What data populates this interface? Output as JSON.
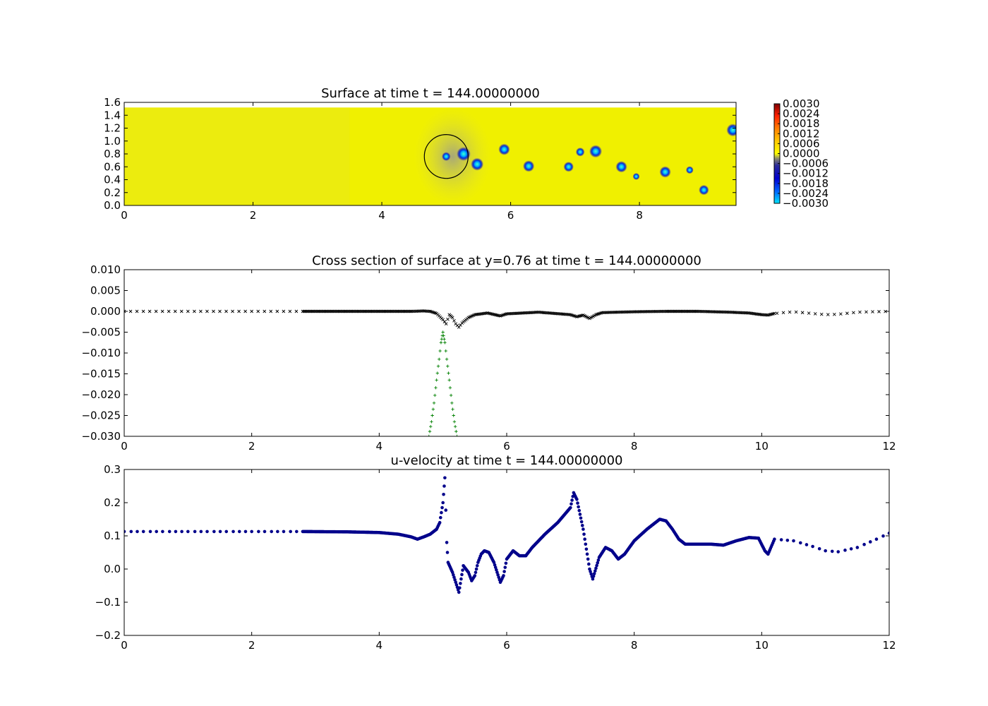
{
  "chart_data": [
    {
      "type": "heatmap",
      "title": "Surface at time t =   144.00000000",
      "xlim": [
        0,
        9.5
      ],
      "ylim": [
        0,
        1.6
      ],
      "field_ylim": [
        0,
        1.52
      ],
      "x_ticks": [
        "0",
        "2",
        "4",
        "6",
        "8"
      ],
      "y_ticks": [
        "0.0",
        "0.2",
        "0.4",
        "0.6",
        "0.8",
        "1.0",
        "1.2",
        "1.4",
        "1.6"
      ],
      "colorbar": {
        "min": -0.003,
        "max": 0.003,
        "colormap": "jet",
        "ticks": [
          "0.0030",
          "0.0024",
          "0.0018",
          "0.0012",
          "0.0006",
          "0.0000",
          "−0.0006",
          "−0.0012",
          "−0.0018",
          "−0.0024",
          "−0.0030"
        ]
      },
      "circle": {
        "cx": 5.0,
        "cy": 0.76,
        "r": 0.34
      },
      "vortices": [
        {
          "x": 5.0,
          "y": 0.76,
          "r": 0.07,
          "value": -0.003
        },
        {
          "x": 5.27,
          "y": 0.8,
          "r": 0.11,
          "value": -0.003
        },
        {
          "x": 5.48,
          "y": 0.64,
          "r": 0.1,
          "value": -0.0028
        },
        {
          "x": 5.9,
          "y": 0.87,
          "r": 0.09,
          "value": -0.0027
        },
        {
          "x": 6.28,
          "y": 0.61,
          "r": 0.09,
          "value": -0.0026
        },
        {
          "x": 6.9,
          "y": 0.6,
          "r": 0.08,
          "value": -0.0024
        },
        {
          "x": 7.08,
          "y": 0.83,
          "r": 0.07,
          "value": -0.0024
        },
        {
          "x": 7.32,
          "y": 0.84,
          "r": 0.1,
          "value": -0.0026
        },
        {
          "x": 7.72,
          "y": 0.6,
          "r": 0.09,
          "value": -0.0025
        },
        {
          "x": 7.95,
          "y": 0.45,
          "r": 0.05,
          "value": -0.0015
        },
        {
          "x": 8.4,
          "y": 0.52,
          "r": 0.09,
          "value": -0.0025
        },
        {
          "x": 8.78,
          "y": 0.55,
          "r": 0.06,
          "value": -0.0018
        },
        {
          "x": 9.0,
          "y": 0.24,
          "r": 0.08,
          "value": -0.0025
        },
        {
          "x": 9.45,
          "y": 1.17,
          "r": 0.1,
          "value": -0.0026
        }
      ],
      "colors": {
        "background_field": "#f0f000",
        "light_band": "#e4e428"
      }
    },
    {
      "type": "scatter",
      "title": "Cross section of surface at y=0.76 at time t =   144.00000000",
      "xlim": [
        0,
        12
      ],
      "ylim": [
        -0.03,
        0.01
      ],
      "x_ticks": [
        "0",
        "2",
        "4",
        "6",
        "8",
        "10",
        "12"
      ],
      "y_ticks": [
        "0.010",
        "0.005",
        "0.000",
        "−0.005",
        "−0.010",
        "−0.015",
        "−0.020",
        "−0.025",
        "−0.030"
      ],
      "series": [
        {
          "marker": "x",
          "color": "#000000",
          "points": [
            [
              0.0,
              0.0
            ],
            [
              0.5,
              0.0
            ],
            [
              1.0,
              0.0
            ],
            [
              1.5,
              0.0
            ],
            [
              2.0,
              0.0
            ],
            [
              2.5,
              0.0
            ],
            [
              2.8,
              0.0
            ],
            [
              3.5,
              0.0
            ],
            [
              4.0,
              0.0
            ],
            [
              4.5,
              0.0
            ],
            [
              4.7,
              0.0001
            ],
            [
              4.8,
              0.0
            ],
            [
              4.9,
              -0.0005
            ],
            [
              5.0,
              -0.002
            ],
            [
              5.05,
              -0.003
            ],
            [
              5.1,
              -0.0008
            ],
            [
              5.15,
              -0.0015
            ],
            [
              5.2,
              -0.003
            ],
            [
              5.25,
              -0.0038
            ],
            [
              5.3,
              -0.0028
            ],
            [
              5.4,
              -0.0015
            ],
            [
              5.5,
              -0.0008
            ],
            [
              5.7,
              -0.0004
            ],
            [
              5.9,
              -0.0011
            ],
            [
              6.0,
              -0.0006
            ],
            [
              6.5,
              -0.0002
            ],
            [
              7.0,
              -0.0008
            ],
            [
              7.1,
              -0.0013
            ],
            [
              7.2,
              -0.0009
            ],
            [
              7.3,
              -0.0017
            ],
            [
              7.4,
              -0.0008
            ],
            [
              7.5,
              -0.0003
            ],
            [
              8.0,
              -0.0001
            ],
            [
              8.5,
              0.0
            ],
            [
              9.0,
              0.0
            ],
            [
              9.5,
              -0.0002
            ],
            [
              9.8,
              -0.0004
            ],
            [
              10.0,
              -0.0008
            ],
            [
              10.1,
              -0.0009
            ],
            [
              10.2,
              -0.0005
            ],
            [
              10.5,
              -0.0001
            ],
            [
              11.0,
              -0.0008
            ],
            [
              11.2,
              -0.0007
            ],
            [
              11.5,
              -0.0002
            ],
            [
              12.0,
              0.0
            ]
          ]
        },
        {
          "marker": "+",
          "color": "#008000",
          "points": [
            [
              4.78,
              -0.03
            ],
            [
              4.82,
              -0.0265
            ],
            [
              4.86,
              -0.022
            ],
            [
              4.9,
              -0.0165
            ],
            [
              4.94,
              -0.0115
            ],
            [
              4.97,
              -0.0075
            ],
            [
              5.0,
              -0.005
            ],
            [
              5.03,
              -0.0075
            ],
            [
              5.06,
              -0.0115
            ],
            [
              5.1,
              -0.0165
            ],
            [
              5.14,
              -0.022
            ],
            [
              5.18,
              -0.0265
            ],
            [
              5.22,
              -0.03
            ]
          ]
        }
      ]
    },
    {
      "type": "scatter",
      "title": "u-velocity at time t =   144.00000000",
      "xlim": [
        0,
        12
      ],
      "ylim": [
        -0.2,
        0.3
      ],
      "x_ticks": [
        "0",
        "2",
        "4",
        "6",
        "8",
        "10",
        "12"
      ],
      "y_ticks": [
        "0.3",
        "0.2",
        "0.1",
        "0.0",
        "−0.1",
        "−0.2"
      ],
      "series": [
        {
          "marker": "o",
          "color": "#00008b",
          "points": [
            [
              0.0,
              0.113
            ],
            [
              1.0,
              0.113
            ],
            [
              2.0,
              0.113
            ],
            [
              2.8,
              0.113
            ],
            [
              3.5,
              0.112
            ],
            [
              4.0,
              0.11
            ],
            [
              4.3,
              0.105
            ],
            [
              4.5,
              0.097
            ],
            [
              4.6,
              0.09
            ],
            [
              4.7,
              0.097
            ],
            [
              4.8,
              0.105
            ],
            [
              4.9,
              0.12
            ],
            [
              4.95,
              0.14
            ],
            [
              5.0,
              0.2
            ],
            [
              5.03,
              0.275
            ],
            [
              5.06,
              0.08
            ],
            [
              5.08,
              0.02
            ],
            [
              5.15,
              -0.01
            ],
            [
              5.2,
              -0.04
            ],
            [
              5.25,
              -0.07
            ],
            [
              5.32,
              0.01
            ],
            [
              5.4,
              -0.01
            ],
            [
              5.45,
              -0.035
            ],
            [
              5.5,
              -0.02
            ],
            [
              5.55,
              0.02
            ],
            [
              5.6,
              0.045
            ],
            [
              5.65,
              0.055
            ],
            [
              5.72,
              0.05
            ],
            [
              5.8,
              0.02
            ],
            [
              5.85,
              -0.01
            ],
            [
              5.9,
              -0.04
            ],
            [
              5.95,
              -0.02
            ],
            [
              6.0,
              0.03
            ],
            [
              6.1,
              0.055
            ],
            [
              6.2,
              0.04
            ],
            [
              6.3,
              0.04
            ],
            [
              6.4,
              0.065
            ],
            [
              6.6,
              0.105
            ],
            [
              6.8,
              0.14
            ],
            [
              7.0,
              0.185
            ],
            [
              7.05,
              0.23
            ],
            [
              7.1,
              0.21
            ],
            [
              7.2,
              0.12
            ],
            [
              7.3,
              0.0
            ],
            [
              7.35,
              -0.03
            ],
            [
              7.45,
              0.035
            ],
            [
              7.55,
              0.065
            ],
            [
              7.65,
              0.055
            ],
            [
              7.75,
              0.03
            ],
            [
              7.85,
              0.045
            ],
            [
              8.0,
              0.085
            ],
            [
              8.2,
              0.12
            ],
            [
              8.4,
              0.15
            ],
            [
              8.5,
              0.145
            ],
            [
              8.6,
              0.12
            ],
            [
              8.7,
              0.09
            ],
            [
              8.8,
              0.075
            ],
            [
              9.0,
              0.075
            ],
            [
              9.2,
              0.075
            ],
            [
              9.4,
              0.072
            ],
            [
              9.6,
              0.085
            ],
            [
              9.8,
              0.095
            ],
            [
              9.95,
              0.093
            ],
            [
              10.05,
              0.055
            ],
            [
              10.1,
              0.045
            ],
            [
              10.2,
              0.09
            ],
            [
              10.5,
              0.085
            ],
            [
              10.8,
              0.068
            ],
            [
              11.0,
              0.055
            ],
            [
              11.2,
              0.052
            ],
            [
              11.5,
              0.065
            ],
            [
              11.8,
              0.09
            ],
            [
              12.0,
              0.108
            ]
          ]
        }
      ]
    }
  ]
}
